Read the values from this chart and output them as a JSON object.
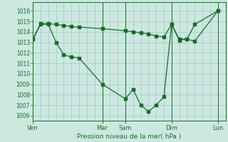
{
  "xlabel": "Pression niveau de la mer( hPa )",
  "bg_color": "#cce8e0",
  "grid_color": "#aacccc",
  "line_color": "#1a6b2a",
  "ylim": [
    1005.5,
    1016.8
  ],
  "yticks": [
    1006,
    1007,
    1008,
    1009,
    1010,
    1011,
    1012,
    1013,
    1014,
    1015,
    1016
  ],
  "xtick_labels": [
    "Ven",
    "Mar",
    "Sam",
    "Dim",
    "Lun"
  ],
  "xtick_positions": [
    0,
    9,
    12,
    18,
    24
  ],
  "xlim": [
    0,
    25
  ],
  "s1_x": [
    0,
    1,
    2,
    3,
    4,
    5,
    6,
    9,
    12,
    13,
    14,
    15,
    16,
    17,
    18,
    19,
    20,
    21,
    24
  ],
  "s1_y": [
    1013.3,
    1014.7,
    1014.7,
    1013.0,
    1011.8,
    1011.6,
    1011.5,
    1009.0,
    1007.6,
    1008.5,
    1007.0,
    1006.4,
    1007.0,
    1007.8,
    1014.7,
    1013.3,
    1013.3,
    1014.7,
    1016.0
  ],
  "s2_x": [
    0,
    1,
    2,
    3,
    4,
    5,
    6,
    9,
    12,
    13,
    14,
    15,
    16,
    17,
    18,
    19,
    20,
    21,
    24
  ],
  "s2_y": [
    1013.3,
    1014.8,
    1014.8,
    1014.7,
    1014.6,
    1014.5,
    1014.45,
    1014.3,
    1014.1,
    1014.0,
    1013.9,
    1013.8,
    1013.6,
    1013.5,
    1014.7,
    1013.2,
    1013.3,
    1013.1,
    1016.0
  ],
  "ylabel_fontsize": 5.5,
  "xlabel_fontsize": 6.5,
  "xtick_fontsize": 6.0,
  "ytick_fontsize": 5.5
}
